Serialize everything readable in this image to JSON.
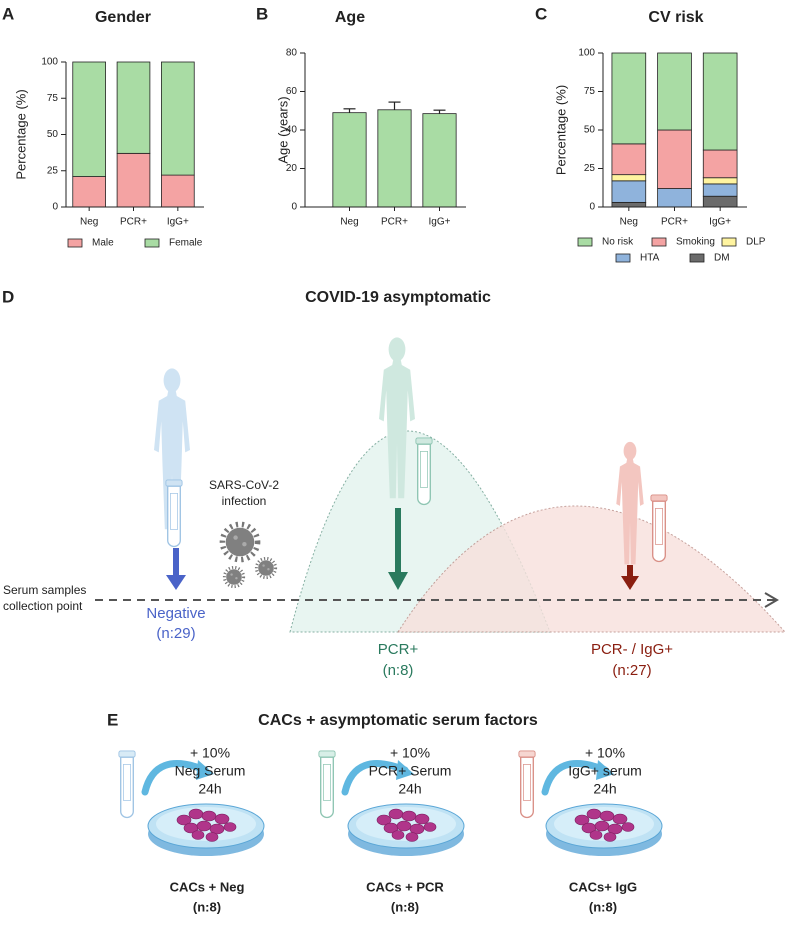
{
  "chart_data": [
    {
      "type": "stacked_bar",
      "panel_label": "A",
      "title": "Gender",
      "y_label": "Percentage (%)",
      "categories": [
        "Neg",
        "PCR+",
        "IgG+"
      ],
      "series": [
        {
          "name": "Male",
          "color": "#f4a3a3",
          "values": [
            21,
            37,
            22
          ]
        },
        {
          "name": "Female",
          "color": "#a9dca4",
          "values": [
            79,
            63,
            78
          ]
        }
      ],
      "ylim": [
        0,
        100
      ],
      "yticks": [
        0,
        25,
        50,
        75,
        100
      ]
    },
    {
      "type": "bar",
      "panel_label": "B",
      "title": "Age",
      "y_label": "Age (years)",
      "categories": [
        "Neg",
        "PCR+",
        "IgG+"
      ],
      "values": [
        49,
        50.5,
        48.5
      ],
      "errors": [
        2,
        4,
        1.8
      ],
      "color": "#a9dca4",
      "ylim": [
        0,
        80
      ],
      "yticks": [
        0,
        20,
        40,
        60,
        80
      ]
    },
    {
      "type": "stacked_bar",
      "panel_label": "C",
      "title": "CV risk",
      "y_label": "Percentage (%)",
      "categories": [
        "Neg",
        "PCR+",
        "IgG+"
      ],
      "series": [
        {
          "name": "DM",
          "color": "#6b6b6b",
          "values": [
            3,
            0,
            7
          ]
        },
        {
          "name": "HTA",
          "color": "#8fb3dc",
          "values": [
            14,
            12,
            8
          ]
        },
        {
          "name": "DLP",
          "color": "#fff4a0",
          "values": [
            4,
            0,
            4
          ]
        },
        {
          "name": "Smoking",
          "color": "#f4a3a3",
          "values": [
            20,
            38,
            18
          ]
        },
        {
          "name": "No risk",
          "color": "#a9dca4",
          "values": [
            59,
            50,
            63
          ]
        }
      ],
      "ylim": [
        0,
        100
      ],
      "yticks": [
        0,
        25,
        50,
        75,
        100
      ]
    }
  ],
  "panel_d": {
    "label": "D",
    "title": "COVID-19 asymptomatic",
    "infection": [
      "SARS-CoV-2",
      "infection"
    ],
    "collection_point": [
      "Serum samples",
      "collection point"
    ],
    "groups": [
      {
        "name": "Negative",
        "n": "(n:29)"
      },
      {
        "name": "PCR+",
        "n": "(n:8)"
      },
      {
        "name": "PCR- / IgG+",
        "n": "(n:27)"
      }
    ]
  },
  "panel_e": {
    "label": "E",
    "title": "CACs + asymptomatic serum factors",
    "conditions": [
      {
        "treatment": [
          "+ 10%",
          "Neg Serum",
          "24h"
        ],
        "caption": "CACs + Neg",
        "n": "(n:8)"
      },
      {
        "treatment": [
          "+ 10%",
          "PCR+ Serum",
          "24h"
        ],
        "caption": "CACs + PCR",
        "n": "(n:8)"
      },
      {
        "treatment": [
          "+ 10%",
          "IgG+ serum",
          "24h"
        ],
        "caption": "CACs+ IgG",
        "n": "(n:8)"
      }
    ]
  }
}
